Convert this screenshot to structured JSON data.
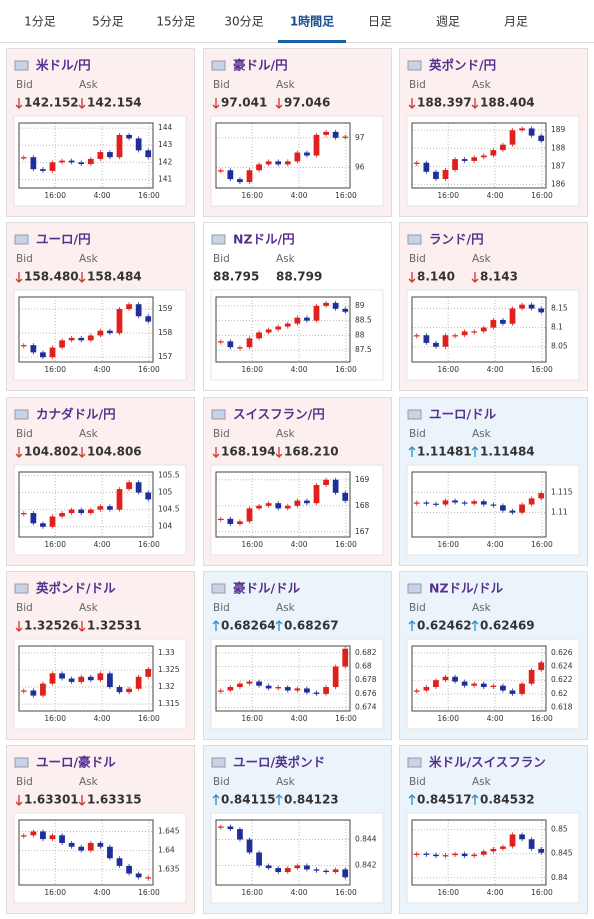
{
  "tabs": [
    "1分足",
    "5分足",
    "15分足",
    "30分足",
    "1時間足",
    "日足",
    "週足",
    "月足"
  ],
  "active_tab": 4,
  "bid_label": "Bid",
  "ask_label": "Ask",
  "cards": [
    {
      "pair": "米ドル/円",
      "trend": "down",
      "bid": "142.152",
      "ask": "142.154",
      "chart": {
        "type": "candlestick",
        "values": [
          142.3,
          141.6,
          141.5,
          142.0,
          142.1,
          142.0,
          141.9,
          142.2,
          142.6,
          142.3,
          143.6,
          143.4,
          142.7,
          142.3
        ],
        "ylim": [
          140.5,
          144.3
        ],
        "yticks": [
          141,
          142,
          143,
          144
        ],
        "x_labels": [
          "16:00",
          "4:00",
          "16:00"
        ]
      }
    },
    {
      "pair": "豪ドル/円",
      "trend": "down",
      "bid": "97.041",
      "ask": "97.046",
      "chart": {
        "type": "candlestick",
        "values": [
          95.9,
          95.6,
          95.5,
          95.9,
          96.1,
          96.2,
          96.1,
          96.2,
          96.5,
          96.4,
          97.1,
          97.2,
          97.0,
          97.04
        ],
        "ylim": [
          95.3,
          97.5
        ],
        "yticks": [
          96,
          97
        ],
        "x_labels": [
          "16:00",
          "4:00",
          "16:00"
        ]
      }
    },
    {
      "pair": "英ポンド/円",
      "trend": "down",
      "bid": "188.397",
      "ask": "188.404",
      "chart": {
        "type": "candlestick",
        "values": [
          187.2,
          186.7,
          186.3,
          186.8,
          187.4,
          187.3,
          187.5,
          187.6,
          187.9,
          188.2,
          189.0,
          189.1,
          188.7,
          188.4
        ],
        "ylim": [
          185.8,
          189.4
        ],
        "yticks": [
          186,
          187,
          188,
          189
        ],
        "x_labels": [
          "16:00",
          "4:00",
          "16:00"
        ]
      }
    },
    {
      "pair": "ユーロ/円",
      "trend": "down",
      "bid": "158.480",
      "ask": "158.484",
      "chart": {
        "type": "candlestick",
        "values": [
          157.5,
          157.2,
          157.0,
          157.4,
          157.7,
          157.8,
          157.7,
          157.9,
          158.1,
          158.0,
          159.0,
          159.2,
          158.7,
          158.48
        ],
        "ylim": [
          156.8,
          159.5
        ],
        "yticks": [
          157,
          158,
          159
        ],
        "x_labels": [
          "16:00",
          "4:00",
          "16:00"
        ]
      }
    },
    {
      "pair": "NZドル/円",
      "trend": null,
      "bid": "88.795",
      "ask": "88.799",
      "chart": {
        "type": "candlestick",
        "values": [
          87.8,
          87.6,
          87.6,
          87.9,
          88.1,
          88.2,
          88.3,
          88.4,
          88.6,
          88.5,
          89.0,
          89.1,
          88.9,
          88.8
        ],
        "ylim": [
          87.1,
          89.3
        ],
        "yticks": [
          87.5,
          88,
          88.5,
          89
        ],
        "x_labels": [
          "16:00",
          "4:00",
          "16:00"
        ]
      }
    },
    {
      "pair": "ランド/円",
      "trend": "down",
      "bid": "8.140",
      "ask": "8.143",
      "chart": {
        "type": "candlestick",
        "values": [
          8.08,
          8.06,
          8.05,
          8.08,
          8.08,
          8.09,
          8.09,
          8.1,
          8.12,
          8.11,
          8.15,
          8.16,
          8.15,
          8.14
        ],
        "ylim": [
          8.01,
          8.18
        ],
        "yticks": [
          8.05,
          8.1,
          8.15
        ],
        "x_labels": [
          "16:00",
          "4:00",
          "16:00"
        ]
      }
    },
    {
      "pair": "カナダドル/円",
      "trend": "down",
      "bid": "104.802",
      "ask": "104.806",
      "chart": {
        "type": "candlestick",
        "values": [
          104.4,
          104.1,
          104.0,
          104.3,
          104.4,
          104.5,
          104.4,
          104.5,
          104.6,
          104.5,
          105.1,
          105.3,
          105.0,
          104.8
        ],
        "ylim": [
          103.7,
          105.6
        ],
        "yticks": [
          104,
          104.5,
          105,
          105.5
        ],
        "x_labels": [
          "16:00",
          "4:00",
          "16:00"
        ]
      }
    },
    {
      "pair": "スイスフラン/円",
      "trend": "down",
      "bid": "168.194",
      "ask": "168.210",
      "chart": {
        "type": "candlestick",
        "values": [
          167.5,
          167.3,
          167.4,
          167.9,
          168.0,
          168.1,
          167.9,
          168.0,
          168.2,
          168.1,
          168.8,
          169.0,
          168.5,
          168.19
        ],
        "ylim": [
          166.8,
          169.3
        ],
        "yticks": [
          167,
          168,
          169
        ],
        "x_labels": [
          "16:00",
          "4:00",
          "16:00"
        ]
      }
    },
    {
      "pair": "ユーロ/ドル",
      "trend": "up",
      "bid": "1.11481",
      "ask": "1.11484",
      "chart": {
        "type": "candlestick",
        "values": [
          1.1125,
          1.1122,
          1.112,
          1.113,
          1.1125,
          1.1122,
          1.1128,
          1.112,
          1.1118,
          1.1105,
          1.11,
          1.112,
          1.1135,
          1.1148
        ],
        "ylim": [
          1.104,
          1.12
        ],
        "yticks": [
          1.11,
          1.115
        ],
        "x_labels": [
          "16:00",
          "4:00",
          "16:00"
        ]
      }
    },
    {
      "pair": "英ポンド/ドル",
      "trend": "down",
      "bid": "1.32526",
      "ask": "1.32531",
      "chart": {
        "type": "candlestick",
        "values": [
          1.319,
          1.3175,
          1.321,
          1.324,
          1.3225,
          1.3215,
          1.323,
          1.322,
          1.324,
          1.32,
          1.3185,
          1.3195,
          1.323,
          1.3253
        ],
        "ylim": [
          1.313,
          1.332
        ],
        "yticks": [
          1.315,
          1.32,
          1.325,
          1.33
        ],
        "x_labels": [
          "16:00",
          "4:00",
          "16:00"
        ]
      }
    },
    {
      "pair": "豪ドル/ドル",
      "trend": "up",
      "bid": "0.68264",
      "ask": "0.68267",
      "chart": {
        "type": "candlestick",
        "values": [
          0.6765,
          0.677,
          0.6775,
          0.6778,
          0.6772,
          0.6768,
          0.677,
          0.6765,
          0.6768,
          0.6762,
          0.676,
          0.677,
          0.68,
          0.6826
        ],
        "ylim": [
          0.6735,
          0.683
        ],
        "yticks": [
          0.674,
          0.676,
          0.678,
          0.68,
          0.682
        ],
        "x_labels": [
          "16:00",
          "4:00",
          "16:00"
        ]
      }
    },
    {
      "pair": "NZドル/ドル",
      "trend": "up",
      "bid": "0.62462",
      "ask": "0.62469",
      "chart": {
        "type": "candlestick",
        "values": [
          0.6205,
          0.621,
          0.622,
          0.6225,
          0.6218,
          0.6212,
          0.6215,
          0.621,
          0.6212,
          0.6205,
          0.62,
          0.6215,
          0.6235,
          0.6246
        ],
        "ylim": [
          0.6175,
          0.627
        ],
        "yticks": [
          0.618,
          0.62,
          0.622,
          0.624,
          0.626
        ],
        "x_labels": [
          "16:00",
          "4:00",
          "16:00"
        ]
      }
    },
    {
      "pair": "ユーロ/豪ドル",
      "trend": "down",
      "bid": "1.63301",
      "ask": "1.63315",
      "chart": {
        "type": "candlestick",
        "values": [
          1.644,
          1.645,
          1.643,
          1.644,
          1.642,
          1.641,
          1.64,
          1.642,
          1.641,
          1.638,
          1.636,
          1.634,
          1.633,
          1.633
        ],
        "ylim": [
          1.631,
          1.648
        ],
        "yticks": [
          1.635,
          1.64,
          1.645
        ],
        "x_labels": [
          "16:00",
          "4:00",
          "16:00"
        ]
      }
    },
    {
      "pair": "ユーロ/英ポンド",
      "trend": "up",
      "bid": "0.84115",
      "ask": "0.84123",
      "chart": {
        "type": "candlestick",
        "values": [
          0.845,
          0.8448,
          0.844,
          0.843,
          0.842,
          0.8418,
          0.8415,
          0.8418,
          0.842,
          0.8417,
          0.8416,
          0.8415,
          0.8417,
          0.8411
        ],
        "ylim": [
          0.8405,
          0.8455
        ],
        "yticks": [
          0.842,
          0.844
        ],
        "x_labels": [
          "16:00",
          "4:00",
          "16:00"
        ]
      }
    },
    {
      "pair": "米ドル/スイスフラン",
      "trend": "up",
      "bid": "0.84517",
      "ask": "0.84532",
      "chart": {
        "type": "candlestick",
        "values": [
          0.845,
          0.8448,
          0.8445,
          0.8447,
          0.845,
          0.8445,
          0.8448,
          0.8455,
          0.846,
          0.8465,
          0.849,
          0.848,
          0.846,
          0.8452
        ],
        "ylim": [
          0.8385,
          0.852
        ],
        "yticks": [
          0.84,
          0.845,
          0.85
        ],
        "x_labels": [
          "16:00",
          "4:00",
          "16:00"
        ]
      }
    }
  ]
}
